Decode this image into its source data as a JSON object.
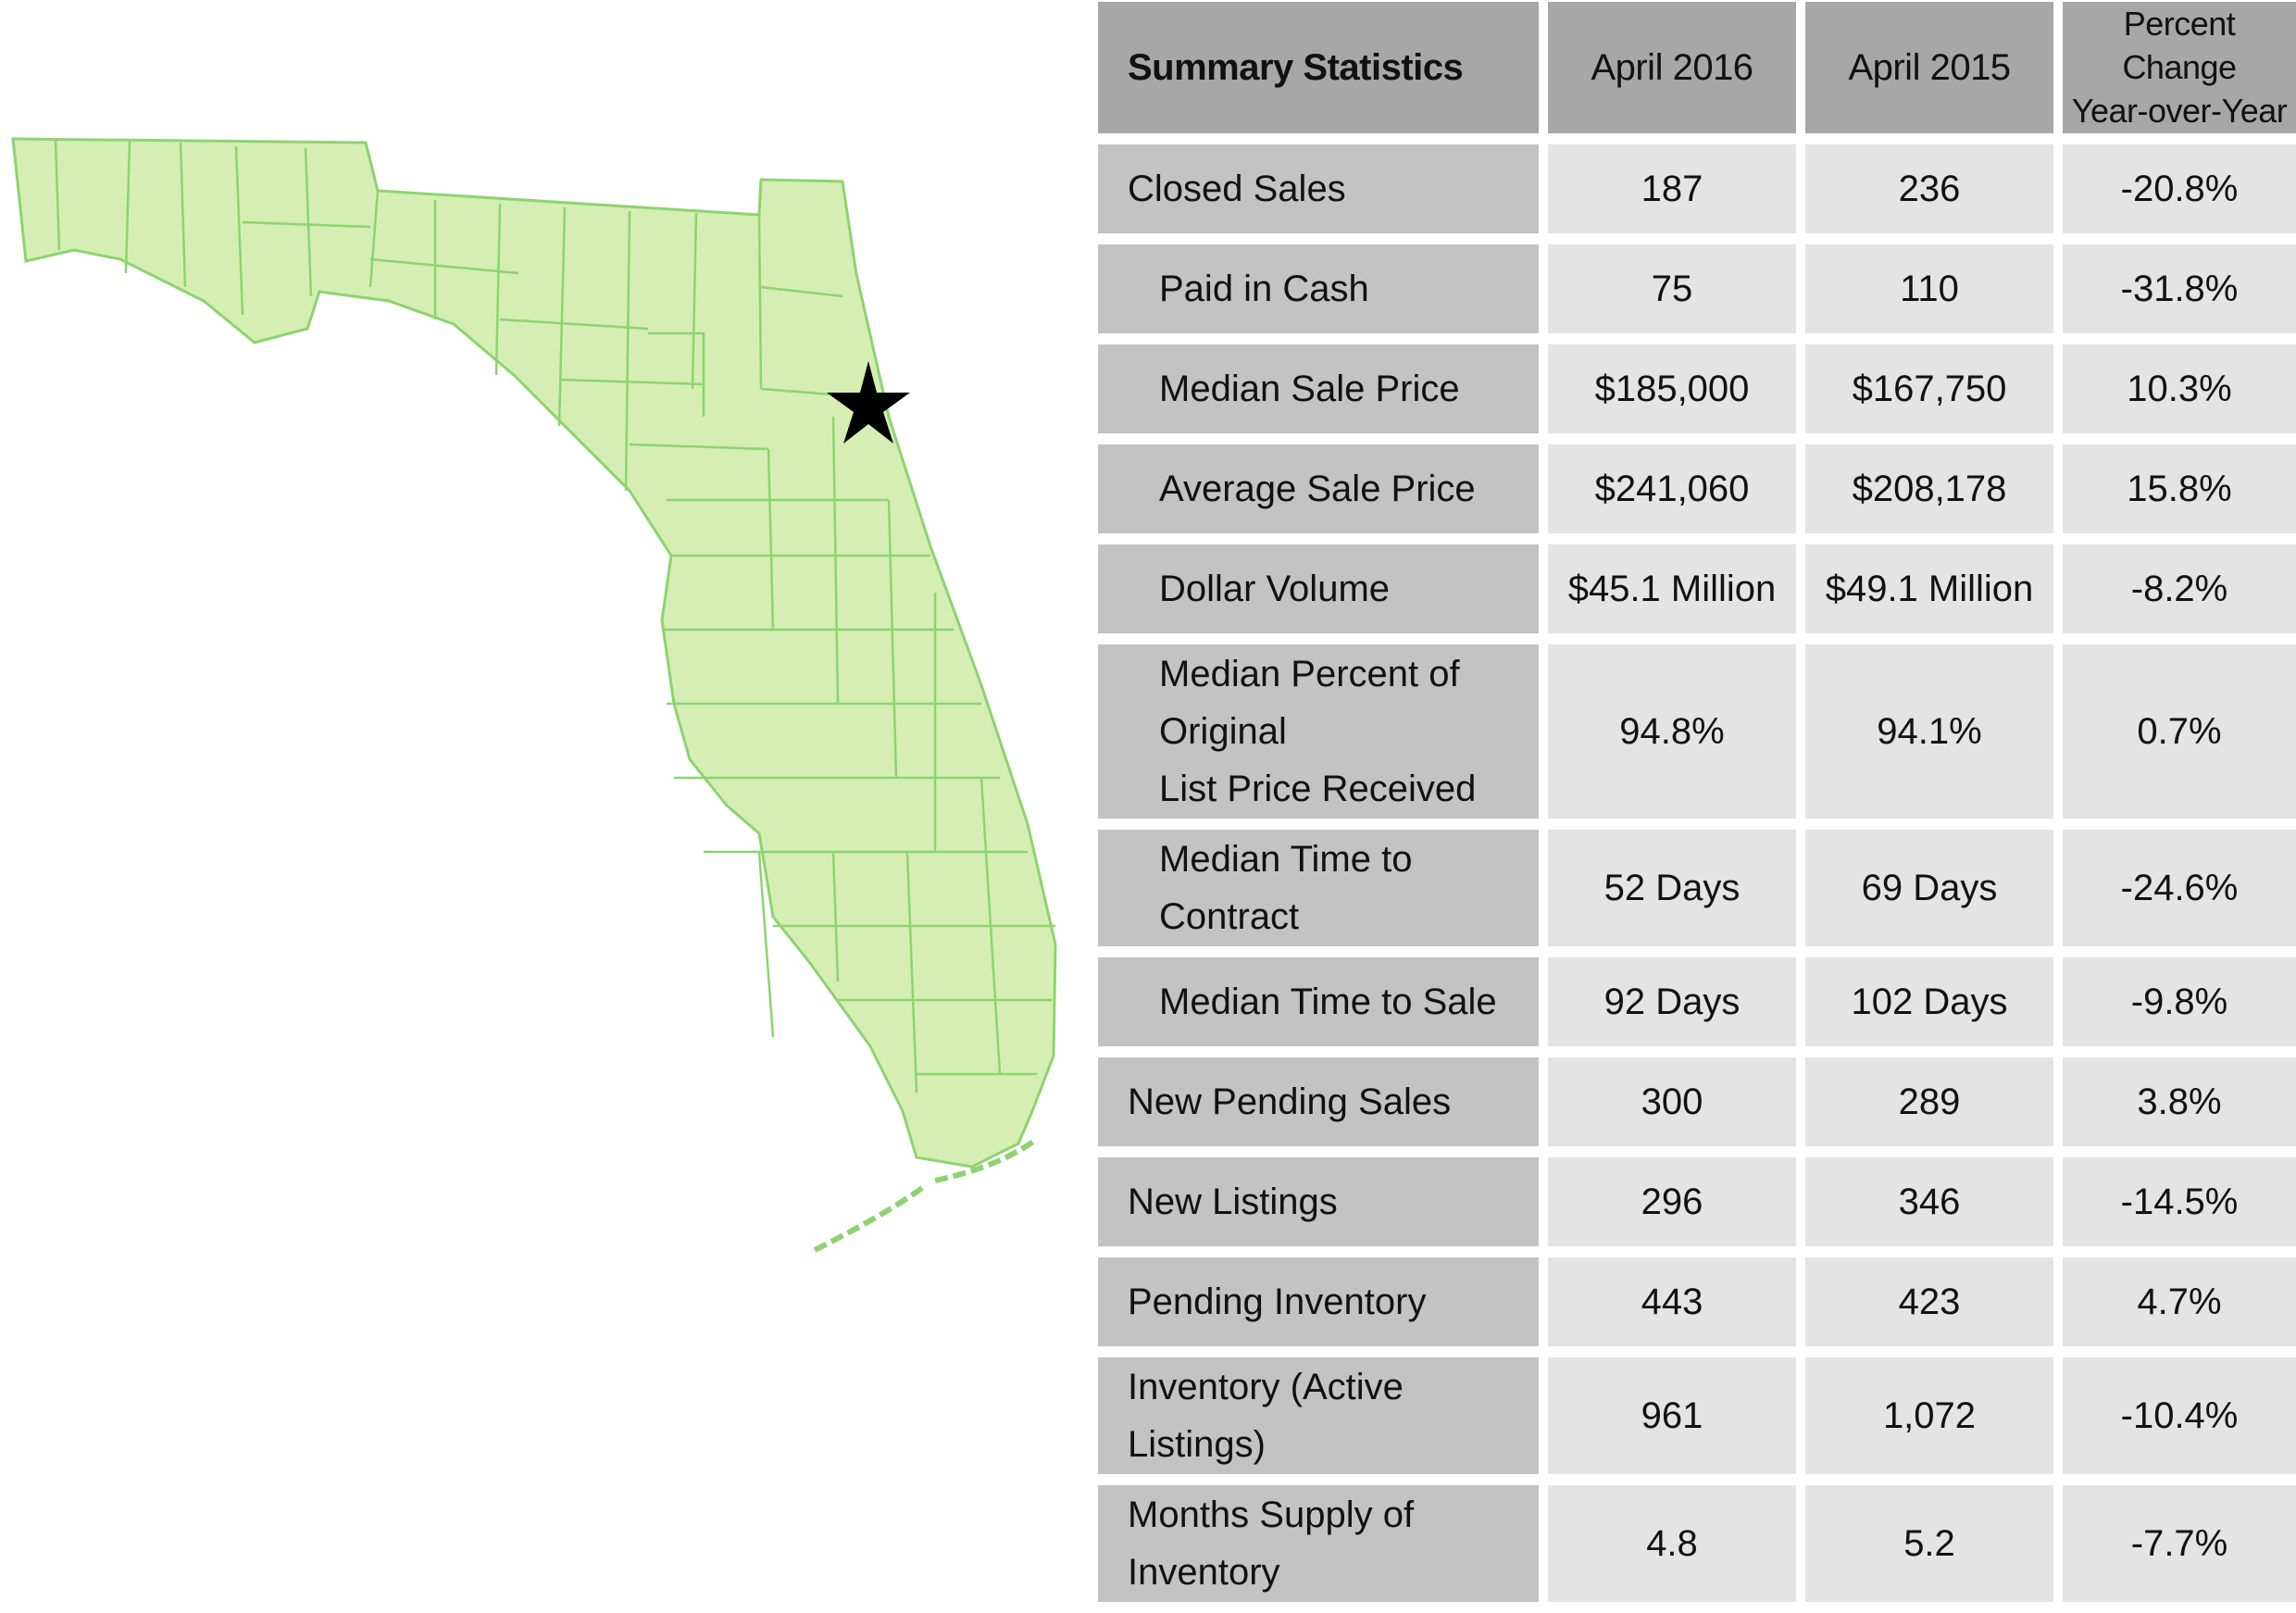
{
  "map": {
    "region": "Florida",
    "fill_color": "#d4eeb4",
    "line_color": "#8ed370",
    "marker_icon": "star-icon",
    "marker_color": "#000000"
  },
  "table": {
    "header": {
      "label": "Summary Statistics",
      "col1": "April 2016",
      "col2": "April 2015",
      "col3_line1": "Percent Change",
      "col3_line2": "Year-over-Year"
    },
    "rows": [
      {
        "label": "Closed Sales",
        "line2": "",
        "indent": false,
        "c1": "187",
        "c2": "236",
        "c3": "-20.8%"
      },
      {
        "label": "Paid in Cash",
        "line2": "",
        "indent": true,
        "c1": "75",
        "c2": "110",
        "c3": "-31.8%"
      },
      {
        "label": "Median Sale Price",
        "line2": "",
        "indent": true,
        "c1": "$185,000",
        "c2": "$167,750",
        "c3": "10.3%"
      },
      {
        "label": "Average Sale Price",
        "line2": "",
        "indent": true,
        "c1": "$241,060",
        "c2": "$208,178",
        "c3": "15.8%"
      },
      {
        "label": "Dollar Volume",
        "line2": "",
        "indent": true,
        "c1": "$45.1 Million",
        "c2": "$49.1 Million",
        "c3": "-8.2%"
      },
      {
        "label": "Median Percent of Original",
        "line2": "List Price Received",
        "indent": true,
        "c1": "94.8%",
        "c2": "94.1%",
        "c3": "0.7%"
      },
      {
        "label": "Median Time to Contract",
        "line2": "",
        "indent": true,
        "c1": "52 Days",
        "c2": "69 Days",
        "c3": "-24.6%"
      },
      {
        "label": "Median Time to Sale",
        "line2": "",
        "indent": true,
        "c1": "92 Days",
        "c2": "102 Days",
        "c3": "-9.8%"
      },
      {
        "label": "New Pending Sales",
        "line2": "",
        "indent": false,
        "c1": "300",
        "c2": "289",
        "c3": "3.8%"
      },
      {
        "label": "New Listings",
        "line2": "",
        "indent": false,
        "c1": "296",
        "c2": "346",
        "c3": "-14.5%"
      },
      {
        "label": "Pending Inventory",
        "line2": "",
        "indent": false,
        "c1": "443",
        "c2": "423",
        "c3": "4.7%"
      },
      {
        "label": "Inventory (Active Listings)",
        "line2": "",
        "indent": false,
        "c1": "961",
        "c2": "1,072",
        "c3": "-10.4%"
      },
      {
        "label": "Months Supply of Inventory",
        "line2": "",
        "indent": false,
        "c1": "4.8",
        "c2": "5.2",
        "c3": "-7.7%"
      }
    ]
  }
}
